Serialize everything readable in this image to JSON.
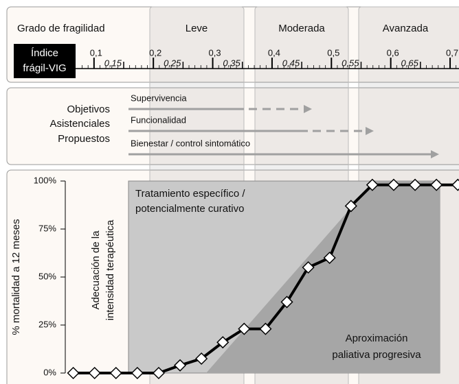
{
  "chart_data": {
    "type": "line",
    "header": "Grado de fragilidad",
    "stages": [
      "Leve",
      "Moderada",
      "Avanzada"
    ],
    "index_label": [
      "Índice",
      "frágil-VIG"
    ],
    "xlim": [
      0.04,
      0.715
    ],
    "xticks": [
      {
        "value": 0.1,
        "label": "0,1"
      },
      {
        "value": 0.15,
        "label": "0,15"
      },
      {
        "value": 0.2,
        "label": "0,2"
      },
      {
        "value": 0.25,
        "label": "0,25"
      },
      {
        "value": 0.3,
        "label": "0,3"
      },
      {
        "value": 0.35,
        "label": "0,35"
      },
      {
        "value": 0.4,
        "label": "0,4"
      },
      {
        "value": 0.45,
        "label": "0,45"
      },
      {
        "value": 0.5,
        "label": "0,5"
      },
      {
        "value": 0.55,
        "label": "0,55"
      },
      {
        "value": 0.6,
        "label": "0,6"
      },
      {
        "value": 0.65,
        "label": "0,65"
      },
      {
        "value": 0.7,
        "label": "0,7"
      }
    ],
    "xminor_step": 0.01,
    "objectives_title": [
      "Objetivos",
      "Asistenciales",
      "Propuestos"
    ],
    "objectives": [
      "Supervivencia",
      "Funcionalidad",
      "Bienestar / control sintomático"
    ],
    "ylabel": "% mortalidad a 12 meses",
    "inner_ylabel": [
      "Adecuación de la",
      "intensidad terapéutica"
    ],
    "region_labels": {
      "curative": [
        "Tratamiento específico /",
        "potencialmente curativo"
      ],
      "palliative": [
        "Aproximación",
        "paliativa progresiva"
      ]
    },
    "ylim": [
      0,
      100
    ],
    "yticks": [
      {
        "value": 0,
        "label": "0%"
      },
      {
        "value": 25,
        "label": "25%"
      },
      {
        "value": 50,
        "label": "50%"
      },
      {
        "value": 75,
        "label": "75%"
      },
      {
        "value": 100,
        "label": "100%"
      }
    ],
    "x": [
      0.065,
      0.101,
      0.137,
      0.173,
      0.209,
      0.245,
      0.281,
      0.317,
      0.353,
      0.389,
      0.425,
      0.461,
      0.497,
      0.533,
      0.569,
      0.605,
      0.641,
      0.677,
      0.713
    ],
    "values": [
      0,
      0,
      0,
      0,
      0,
      4,
      7.5,
      16,
      23,
      23,
      37,
      55,
      60,
      87,
      98,
      98,
      98,
      98,
      98
    ],
    "color": "#000000"
  }
}
